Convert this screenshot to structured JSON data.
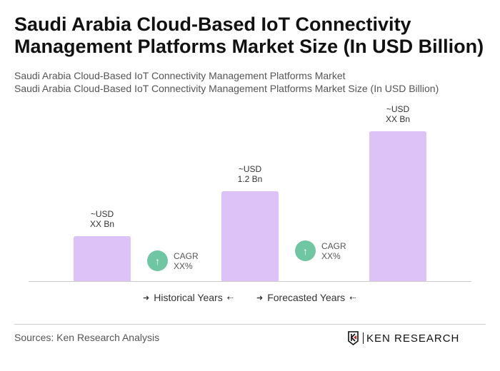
{
  "title": "Saudi Arabia Cloud-Based IoT Connectivity Management Platforms Market Size (In USD Billion)",
  "subtitle1": "Saudi Arabia Cloud-Based IoT Connectivity Management Platforms Market",
  "subtitle2": "Saudi Arabia Cloud-Based IoT Connectivity Management Platforms Market Size (In USD Billion)",
  "chart_data": {
    "type": "bar",
    "categories": [
      "",
      "",
      ""
    ],
    "values": [
      0.6,
      1.2,
      2.0
    ],
    "data_labels": [
      [
        "~USD",
        "XX Bn"
      ],
      [
        "~USD",
        "1.2 Bn"
      ],
      [
        "~USD",
        "XX Bn"
      ]
    ],
    "bar_color": "#dcc2f7",
    "ylim": [
      0,
      2.1
    ],
    "grid": false,
    "cagr": [
      {
        "label": "CAGR",
        "value": "XX%"
      },
      {
        "label": "CAGR",
        "value": "XX%"
      }
    ],
    "cagr_color": "#6fc6a3",
    "legend": [
      "Historical Years",
      "Forecasted Years"
    ]
  },
  "footer": {
    "source": "Sources: Ken Research Analysis",
    "logo": "KEN RESEARCH"
  }
}
